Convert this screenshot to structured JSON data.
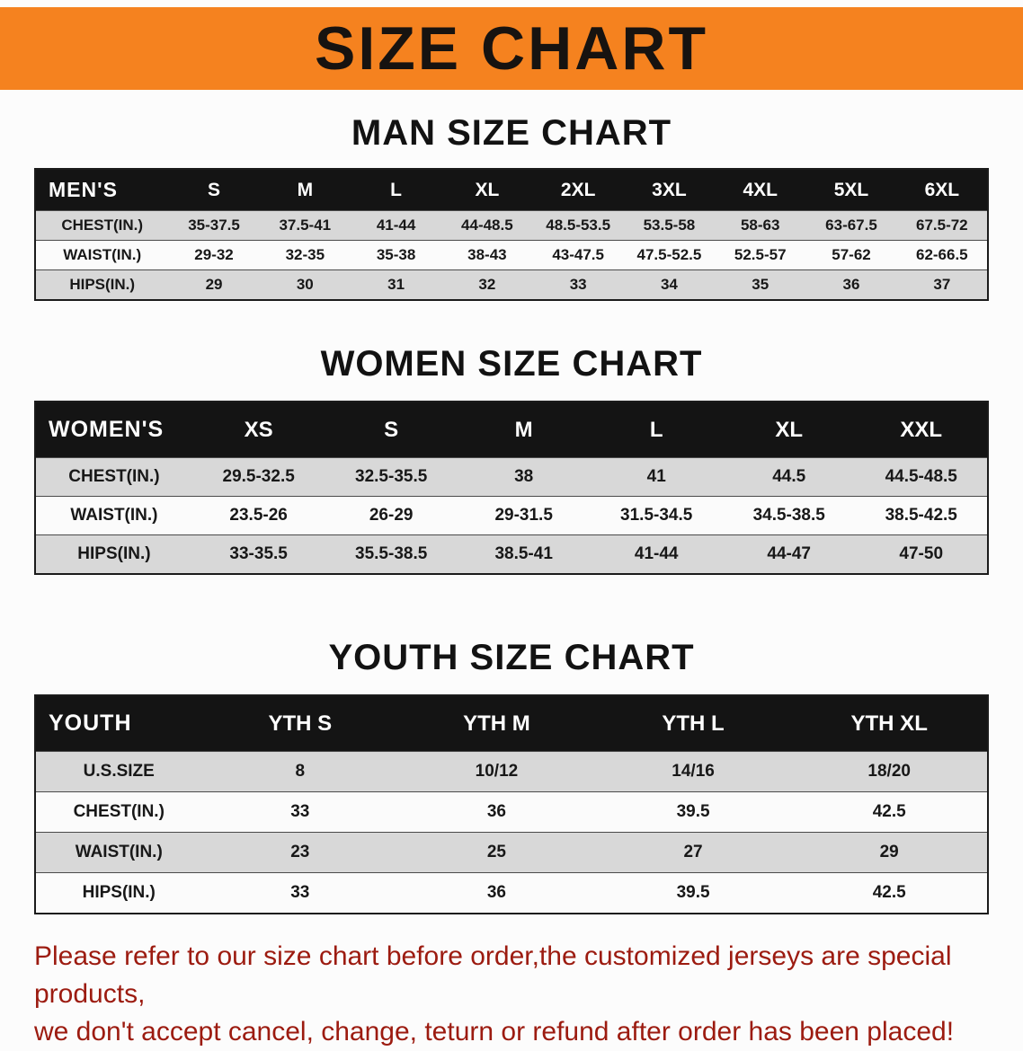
{
  "page": {
    "banner_title": "SIZE CHART"
  },
  "sections": {
    "men": {
      "heading": "MAN SIZE CHART",
      "table": {
        "name": "mens",
        "title": "MEN'S",
        "columns": [
          "S",
          "M",
          "L",
          "XL",
          "2XL",
          "3XL",
          "4XL",
          "5XL",
          "6XL"
        ],
        "rows": [
          {
            "label": "CHEST(IN.)",
            "values": [
              "35-37.5",
              "37.5-41",
              "41-44",
              "44-48.5",
              "48.5-53.5",
              "53.5-58",
              "58-63",
              "63-67.5",
              "67.5-72"
            ]
          },
          {
            "label": "WAIST(IN.)",
            "values": [
              "29-32",
              "32-35",
              "35-38",
              "38-43",
              "43-47.5",
              "47.5-52.5",
              "52.5-57",
              "57-62",
              "62-66.5"
            ]
          },
          {
            "label": "HIPS(IN.)",
            "values": [
              "29",
              "30",
              "31",
              "32",
              "33",
              "34",
              "35",
              "36",
              "37"
            ]
          }
        ]
      }
    },
    "women": {
      "heading": "WOMEN SIZE CHART",
      "table": {
        "name": "womens",
        "title": "WOMEN'S",
        "columns": [
          "XS",
          "S",
          "M",
          "L",
          "XL",
          "XXL"
        ],
        "rows": [
          {
            "label": "CHEST(IN.)",
            "values": [
              "29.5-32.5",
              "32.5-35.5",
              "38",
              "41",
              "44.5",
              "44.5-48.5"
            ]
          },
          {
            "label": "WAIST(IN.)",
            "values": [
              "23.5-26",
              "26-29",
              "29-31.5",
              "31.5-34.5",
              "34.5-38.5",
              "38.5-42.5"
            ]
          },
          {
            "label": "HIPS(IN.)",
            "values": [
              "33-35.5",
              "35.5-38.5",
              "38.5-41",
              "41-44",
              "44-47",
              "47-50"
            ]
          }
        ]
      }
    },
    "youth": {
      "heading": "YOUTH SIZE CHART",
      "table": {
        "name": "youth",
        "title": "YOUTH",
        "columns": [
          "YTH S",
          "YTH M",
          "YTH L",
          "YTH XL"
        ],
        "rows": [
          {
            "label": "U.S.SIZE",
            "values": [
              "8",
              "10/12",
              "14/16",
              "18/20"
            ]
          },
          {
            "label": "CHEST(IN.)",
            "values": [
              "33",
              "36",
              "39.5",
              "42.5"
            ]
          },
          {
            "label": "WAIST(IN.)",
            "values": [
              "23",
              "25",
              "27",
              "29"
            ]
          },
          {
            "label": "HIPS(IN.)",
            "values": [
              "33",
              "36",
              "39.5",
              "42.5"
            ]
          }
        ]
      }
    }
  },
  "footer": {
    "line1": "Please refer to our size chart before order,the customized jerseys are special products,",
    "line2": "we don't accept cancel, change, teturn or refund after order has been placed!"
  },
  "colors": {
    "banner_bg": "#F5821F",
    "table_header_bg": "#141414",
    "row_alt_bg": "#d8d8d8",
    "footer_text": "#9c1b10"
  }
}
